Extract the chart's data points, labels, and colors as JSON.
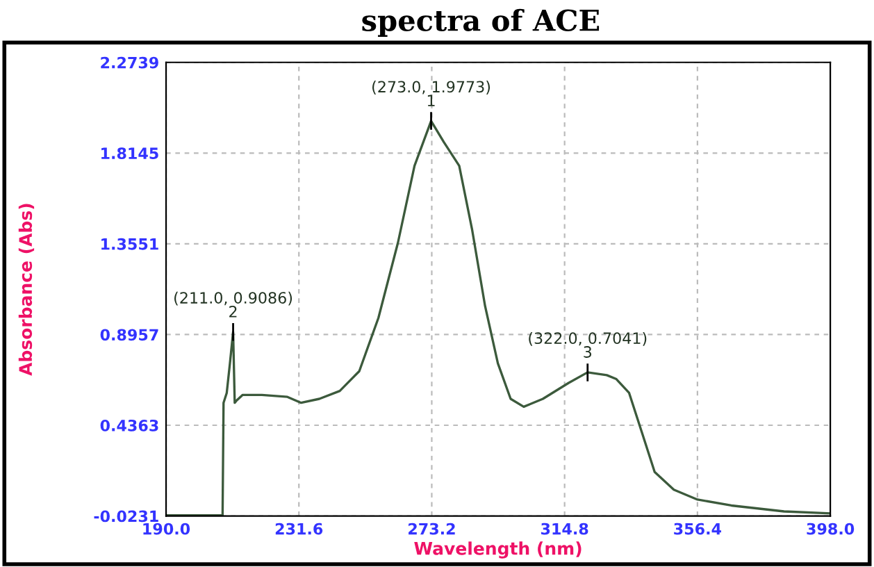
{
  "chart_data": {
    "type": "line",
    "title": "spectra of ACE",
    "xlabel": "Wavelength (nm)",
    "ylabel": "Absorbance (Abs)",
    "x": [
      190,
      200,
      207.7,
      208,
      209,
      210,
      211,
      211.5,
      212,
      214,
      220,
      228,
      232.3,
      238,
      244.4,
      250.5,
      256.5,
      262.6,
      267.8,
      273,
      277,
      281.8,
      285.8,
      289.9,
      293.9,
      297.9,
      302,
      308,
      316,
      322,
      328,
      331,
      335,
      339,
      343,
      349,
      356.4,
      367,
      383.5,
      398
    ],
    "series": [
      {
        "color": "#3c5a3c",
        "values": [
          -0.02,
          -0.02,
          -0.02,
          0.55,
          0.6,
          0.75,
          0.9086,
          0.55,
          0.56,
          0.59,
          0.59,
          0.58,
          0.55,
          0.57,
          0.61,
          0.71,
          0.98,
          1.36,
          1.75,
          1.9773,
          1.87,
          1.75,
          1.43,
          1.04,
          0.75,
          0.57,
          0.53,
          0.57,
          0.65,
          0.7041,
          0.69,
          0.67,
          0.6,
          0.4,
          0.2,
          0.11,
          0.06,
          0.03,
          0.0,
          -0.01
        ]
      }
    ],
    "xlim": [
      190,
      398
    ],
    "ylim": [
      -0.0231,
      2.2739
    ],
    "xticks": [
      {
        "value": 190,
        "label": "190.0"
      },
      {
        "value": 231.6,
        "label": "231.6"
      },
      {
        "value": 273.2,
        "label": "273.2"
      },
      {
        "value": 314.8,
        "label": "314.8"
      },
      {
        "value": 356.4,
        "label": "356.4"
      },
      {
        "value": 398,
        "label": "398.0"
      }
    ],
    "yticks": [
      -0.0231,
      0.4363,
      0.8957,
      1.3551,
      1.8145,
      2.2739
    ],
    "grid": true,
    "legend": false,
    "marker": "none",
    "line_style": "solid",
    "annotations": [
      {
        "text": "(273.0, 1.9773)\n1",
        "x": 273,
        "y": 1.9773
      },
      {
        "text": "(211.0, 0.9086)\n2",
        "x": 211,
        "y": 0.9086
      },
      {
        "text": "(322.0, 0.7041)\n3",
        "x": 322,
        "y": 0.7041
      }
    ]
  }
}
